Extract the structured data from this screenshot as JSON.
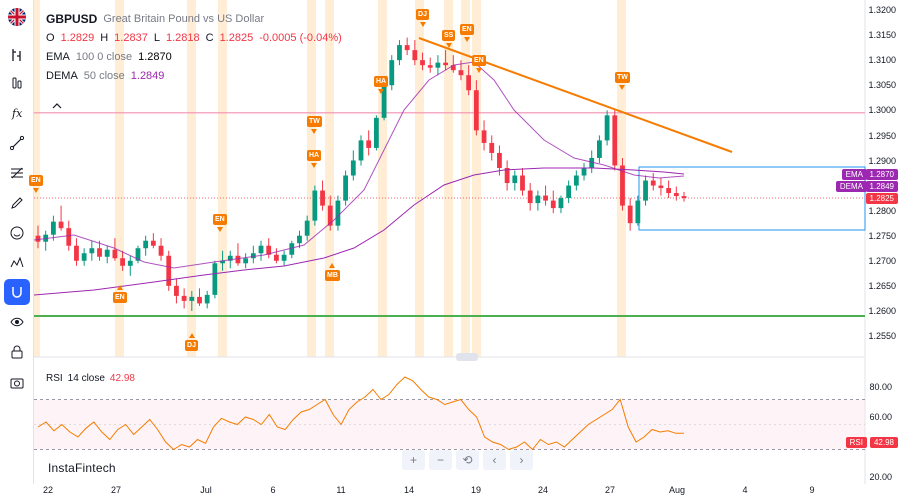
{
  "toolbar": {
    "tools": [
      "crosshair-icon",
      "trend-line-icon",
      "fib-icon",
      "brush-icon",
      "measure-icon",
      "emoji-icon",
      "pattern-icon",
      "magnet-icon",
      "eye-icon",
      "lock-icon",
      "camera-icon",
      "bars-icon"
    ]
  },
  "legend": {
    "symbol": "GBPUSD",
    "description": "Great Britain Pound vs US Dollar",
    "o_label": "O",
    "o_value": "1.2829",
    "h_label": "H",
    "h_value": "1.2837",
    "l_label": "L",
    "l_value": "1.2818",
    "c_label": "C",
    "c_value": "1.2825",
    "change": "-0.0005 (-0.04%)",
    "ema_name": "EMA",
    "ema_params": "100 0 close",
    "ema_value": "1.2870",
    "dema_name": "DEMA",
    "dema_params": "50 close",
    "dema_value": "1.2849"
  },
  "price_axis": [
    "1.3200",
    "1.3150",
    "1.3100",
    "1.3050",
    "1.3000",
    "1.2950",
    "1.2900",
    "1.2850",
    "1.2800",
    "1.2750",
    "1.2700",
    "1.2650",
    "1.2600",
    "1.2550"
  ],
  "tags": {
    "ema_label": "EMA",
    "ema_value": "1.2870",
    "dema_label": "DEMA",
    "dema_value": "1.2849",
    "last_price": "1.2825",
    "rsi_label": "RSI",
    "rsi_value": "42.98"
  },
  "rsi": {
    "name": "RSI",
    "params": "14 close",
    "value": "42.98",
    "axis": [
      "80.00",
      "60.00",
      "20.00"
    ]
  },
  "watermark": "InstaFintech",
  "time_axis": [
    "22",
    "27",
    "Jul",
    "6",
    "11",
    "14",
    "19",
    "24",
    "27",
    "Aug",
    "4",
    "9"
  ],
  "events": [
    "EN",
    "EN",
    "DJ",
    "EN",
    "TW",
    "HA",
    "MB",
    "HA",
    "DJ",
    "SS",
    "EN",
    "EN",
    "TW"
  ],
  "nav": [
    "+",
    "−",
    "⟲",
    "‹",
    "›"
  ],
  "colors": {
    "up": "#089981",
    "down": "#f23645",
    "dema": "#9c27b0",
    "trend": "#f57c00",
    "support": "#4caf50",
    "resistance": "#f48fb1",
    "box": "#2196f3",
    "event": "#f57c00"
  },
  "chart_data": {
    "type": "candlestick",
    "price_range": [
      1.2525,
      1.322
    ],
    "rsi_range": [
      20,
      90
    ],
    "support": 1.259,
    "resistance": 1.2995
  }
}
